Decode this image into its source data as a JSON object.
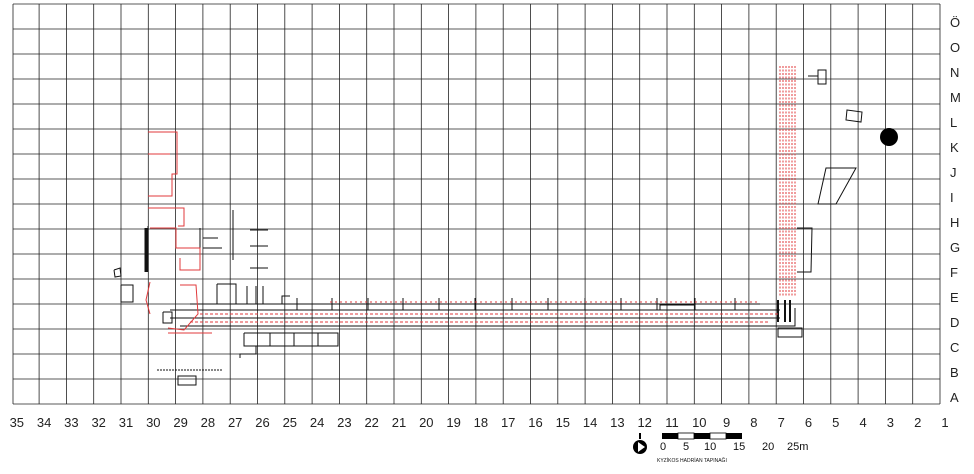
{
  "grid": {
    "row_labels": [
      "Ö",
      "O",
      "N",
      "M",
      "L",
      "K",
      "J",
      "I",
      "H",
      "G",
      "F",
      "E",
      "D",
      "C",
      "B",
      "A"
    ],
    "column_labels": [
      "35",
      "34",
      "33",
      "32",
      "31",
      "30",
      "29",
      "28",
      "27",
      "26",
      "25",
      "24",
      "23",
      "22",
      "21",
      "20",
      "19",
      "18",
      "17",
      "16",
      "15",
      "14",
      "13",
      "12",
      "11",
      "10",
      "9",
      "8",
      "7",
      "6",
      "5",
      "4",
      "3",
      "2",
      "1"
    ]
  },
  "scale_bar": {
    "ticks": [
      "0",
      "5",
      "10",
      "15",
      "20",
      "25m"
    ],
    "caption": "KYZİKOS HADRİAN TAPINAĞI"
  },
  "colors": {
    "grid_line": "#222222",
    "wall_black": "#111111",
    "wall_red": "#e0393b",
    "background": "#ffffff"
  },
  "icons": {
    "north_arrow": "north-arrow-icon",
    "marker": "filled-circle-marker"
  }
}
